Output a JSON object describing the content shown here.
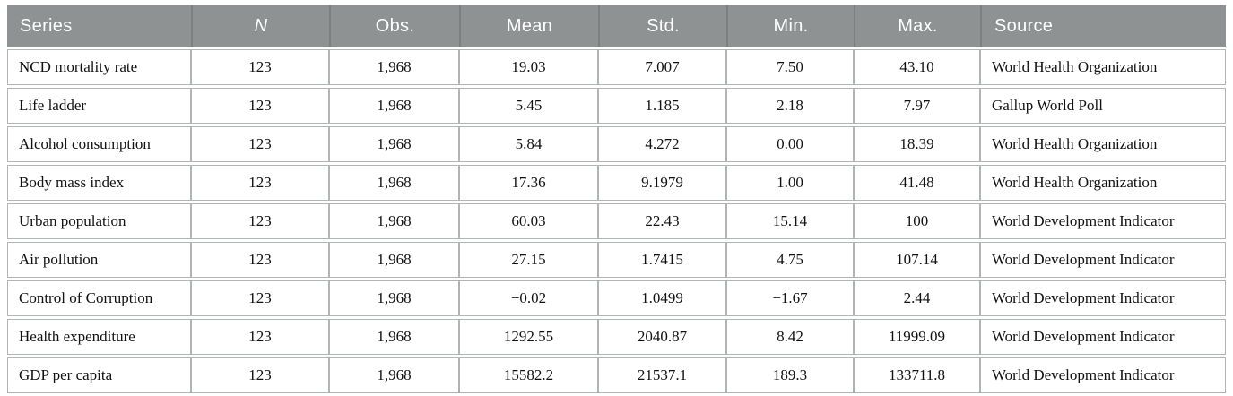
{
  "table": {
    "columns": [
      {
        "id": "series",
        "label": "Series"
      },
      {
        "id": "n",
        "label": "N"
      },
      {
        "id": "obs",
        "label": "Obs."
      },
      {
        "id": "mean",
        "label": "Mean"
      },
      {
        "id": "std",
        "label": "Std."
      },
      {
        "id": "min",
        "label": "Min."
      },
      {
        "id": "max",
        "label": "Max."
      },
      {
        "id": "source",
        "label": "Source"
      }
    ],
    "rows": [
      [
        "NCD mortality rate",
        "123",
        "1,968",
        "19.03",
        "7.007",
        "7.50",
        "43.10",
        "World Health Organization"
      ],
      [
        "Life ladder",
        "123",
        "1,968",
        "5.45",
        "1.185",
        "2.18",
        "7.97",
        "Gallup World Poll"
      ],
      [
        "Alcohol consumption",
        "123",
        "1,968",
        "5.84",
        "4.272",
        "0.00",
        "18.39",
        "World Health Organization"
      ],
      [
        "Body mass index",
        "123",
        "1,968",
        "17.36",
        "9.1979",
        "1.00",
        "41.48",
        "World Health Organization"
      ],
      [
        "Urban population",
        "123",
        "1,968",
        "60.03",
        "22.43",
        "15.14",
        "100",
        "World Development Indicator"
      ],
      [
        "Air pollution",
        "123",
        "1,968",
        "27.15",
        "1.7415",
        "4.75",
        "107.14",
        "World Development Indicator"
      ],
      [
        "Control of Corruption",
        "123",
        "1,968",
        "−0.02",
        "1.0499",
        "−1.67",
        "2.44",
        "World Development Indicator"
      ],
      [
        "Health expenditure",
        "123",
        "1,968",
        "1292.55",
        "2040.87",
        "8.42",
        "11999.09",
        "World Development Indicator"
      ],
      [
        "GDP per capita",
        "123",
        "1,968",
        "15582.2",
        "21537.1",
        "189.3",
        "133711.8",
        "World Development Indicator"
      ]
    ],
    "colors": {
      "header_bg": "#8e9293",
      "header_text": "#ffffff",
      "header_divider": "#7c8081",
      "cell_border": "#b2b5b6",
      "body_text": "#111111"
    }
  }
}
